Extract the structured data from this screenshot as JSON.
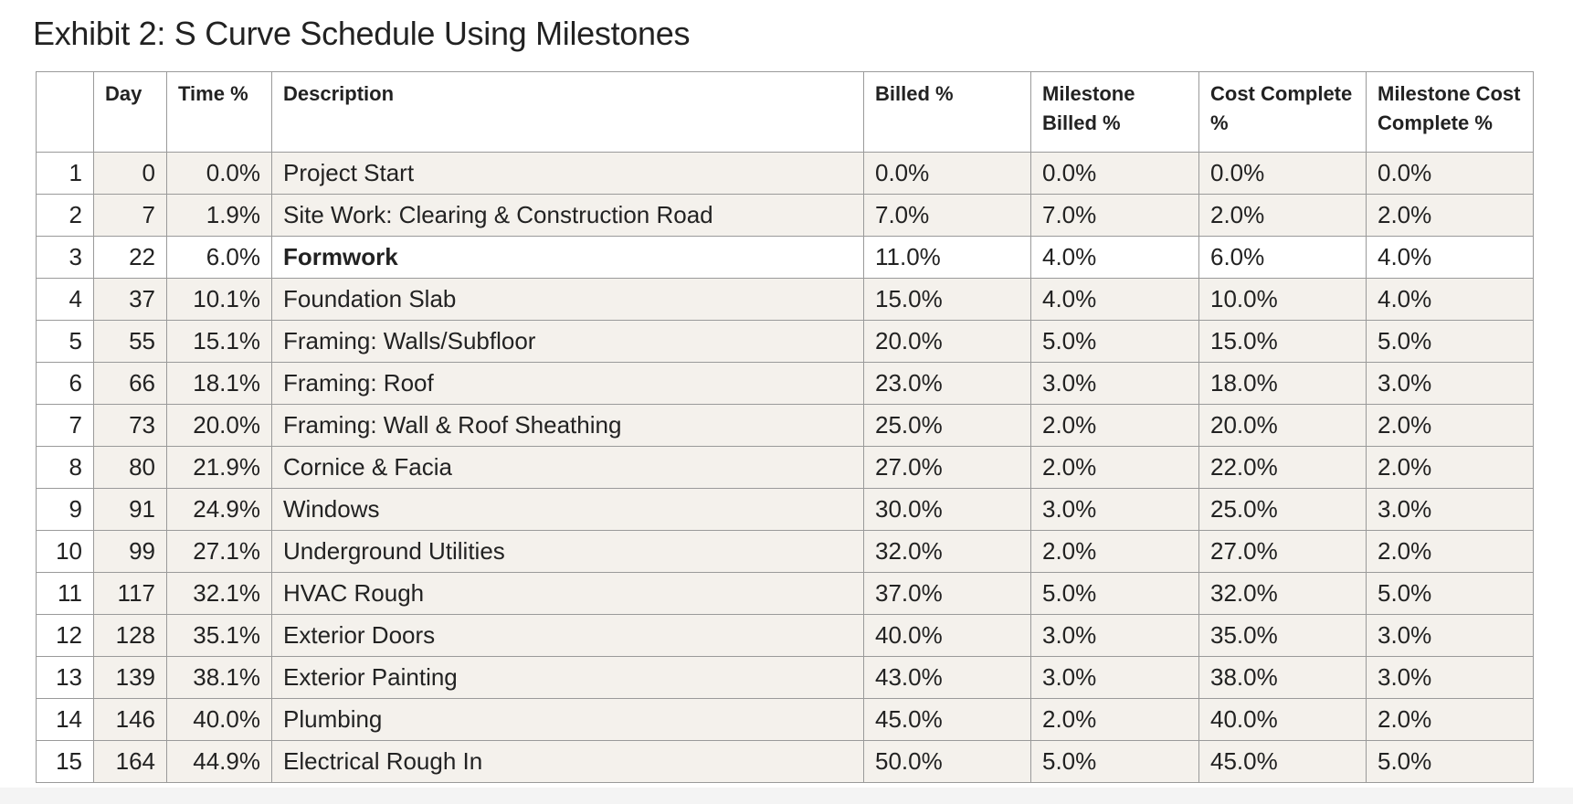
{
  "title": "Exhibit 2: S Curve Schedule Using Milestones",
  "headers": {
    "num": "",
    "day": "Day",
    "time": "Time %",
    "description": "Description",
    "billed": "Billed %",
    "milestone_billed": "Milestone Billed %",
    "cost_complete": "Cost Complete %",
    "milestone_cost_complete": "Milestone Cost Complete %"
  },
  "rows": [
    {
      "num": "1",
      "day": "0",
      "time": "0.0%",
      "description": "Project Start",
      "billed": "0.0%",
      "milestone_billed": "0.0%",
      "cost_complete": "0.0%",
      "milestone_cost_complete": "0.0%"
    },
    {
      "num": "2",
      "day": "7",
      "time": "1.9%",
      "description": "Site Work: Clearing & Construction Road",
      "billed": "7.0%",
      "milestone_billed": "7.0%",
      "cost_complete": "2.0%",
      "milestone_cost_complete": "2.0%"
    },
    {
      "num": "3",
      "day": "22",
      "time": "6.0%",
      "description": "Formwork",
      "billed": "11.0%",
      "milestone_billed": "4.0%",
      "cost_complete": "6.0%",
      "milestone_cost_complete": "4.0%"
    },
    {
      "num": "4",
      "day": "37",
      "time": "10.1%",
      "description": "Foundation Slab",
      "billed": "15.0%",
      "milestone_billed": "4.0%",
      "cost_complete": "10.0%",
      "milestone_cost_complete": "4.0%"
    },
    {
      "num": "5",
      "day": "55",
      "time": "15.1%",
      "description": "Framing: Walls/Subfloor",
      "billed": "20.0%",
      "milestone_billed": "5.0%",
      "cost_complete": "15.0%",
      "milestone_cost_complete": "5.0%"
    },
    {
      "num": "6",
      "day": "66",
      "time": "18.1%",
      "description": "Framing: Roof",
      "billed": "23.0%",
      "milestone_billed": "3.0%",
      "cost_complete": "18.0%",
      "milestone_cost_complete": "3.0%"
    },
    {
      "num": "7",
      "day": "73",
      "time": "20.0%",
      "description": "Framing: Wall & Roof Sheathing",
      "billed": "25.0%",
      "milestone_billed": "2.0%",
      "cost_complete": "20.0%",
      "milestone_cost_complete": "2.0%"
    },
    {
      "num": "8",
      "day": "80",
      "time": "21.9%",
      "description": "Cornice & Facia",
      "billed": "27.0%",
      "milestone_billed": "2.0%",
      "cost_complete": "22.0%",
      "milestone_cost_complete": "2.0%"
    },
    {
      "num": "9",
      "day": "91",
      "time": "24.9%",
      "description": "Windows",
      "billed": "30.0%",
      "milestone_billed": "3.0%",
      "cost_complete": "25.0%",
      "milestone_cost_complete": "3.0%"
    },
    {
      "num": "10",
      "day": "99",
      "time": "27.1%",
      "description": "Underground Utilities",
      "billed": "32.0%",
      "milestone_billed": "2.0%",
      "cost_complete": "27.0%",
      "milestone_cost_complete": "2.0%"
    },
    {
      "num": "11",
      "day": "117",
      "time": "32.1%",
      "description": "HVAC Rough",
      "billed": "37.0%",
      "milestone_billed": "5.0%",
      "cost_complete": "32.0%",
      "milestone_cost_complete": "5.0%"
    },
    {
      "num": "12",
      "day": "128",
      "time": "35.1%",
      "description": "Exterior Doors",
      "billed": "40.0%",
      "milestone_billed": "3.0%",
      "cost_complete": "35.0%",
      "milestone_cost_complete": "3.0%"
    },
    {
      "num": "13",
      "day": "139",
      "time": "38.1%",
      "description": "Exterior Painting",
      "billed": "43.0%",
      "milestone_billed": "3.0%",
      "cost_complete": "38.0%",
      "milestone_cost_complete": "3.0%"
    },
    {
      "num": "14",
      "day": "146",
      "time": "40.0%",
      "description": "Plumbing",
      "billed": "45.0%",
      "milestone_billed": "2.0%",
      "cost_complete": "40.0%",
      "milestone_cost_complete": "2.0%"
    },
    {
      "num": "15",
      "day": "164",
      "time": "44.9%",
      "description": "Electrical Rough In",
      "billed": "50.0%",
      "milestone_billed": "5.0%",
      "cost_complete": "45.0%",
      "milestone_cost_complete": "5.0%"
    }
  ],
  "colors": {
    "shaded_row": "#f4f1ec",
    "border": "#9a9a9a",
    "text": "#222222"
  }
}
